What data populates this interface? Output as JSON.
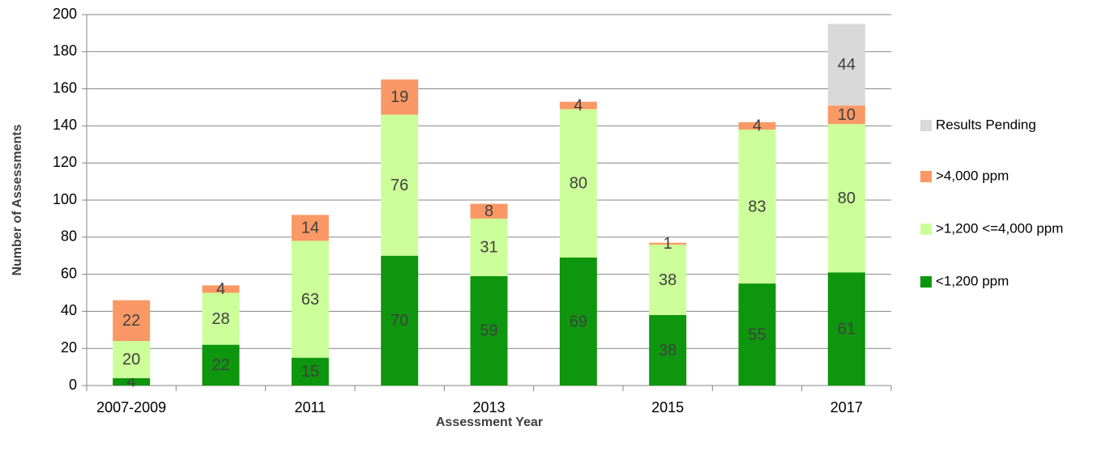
{
  "chart_data": {
    "type": "stacked_bar",
    "x_label": "Assessment Year",
    "y_label": "Number of Assessments",
    "categories": [
      "2007-2009",
      null,
      "2011",
      null,
      "2013",
      null,
      "2015",
      null,
      "2017"
    ],
    "series": [
      {
        "name": "<1,200 ppm",
        "color": "#0e960e",
        "values": [
          4,
          22,
          15,
          70,
          59,
          69,
          38,
          55,
          61
        ]
      },
      {
        "name": ">1,200 <=4,000 ppm",
        "color": "#ccff99",
        "values": [
          20,
          28,
          63,
          76,
          31,
          80,
          38,
          83,
          80
        ]
      },
      {
        "name": ">4,000 ppm",
        "color": "#fa9966",
        "values": [
          22,
          4,
          14,
          19,
          8,
          4,
          1,
          4,
          10
        ]
      },
      {
        "name": "Results Pending",
        "color": "#d9d9d9",
        "values": [
          null,
          null,
          null,
          null,
          null,
          null,
          null,
          null,
          44
        ]
      }
    ],
    "ylim": [
      0,
      200
    ],
    "yticks": [
      0,
      20,
      40,
      60,
      80,
      100,
      120,
      140,
      160,
      180,
      200
    ],
    "grid": true
  }
}
